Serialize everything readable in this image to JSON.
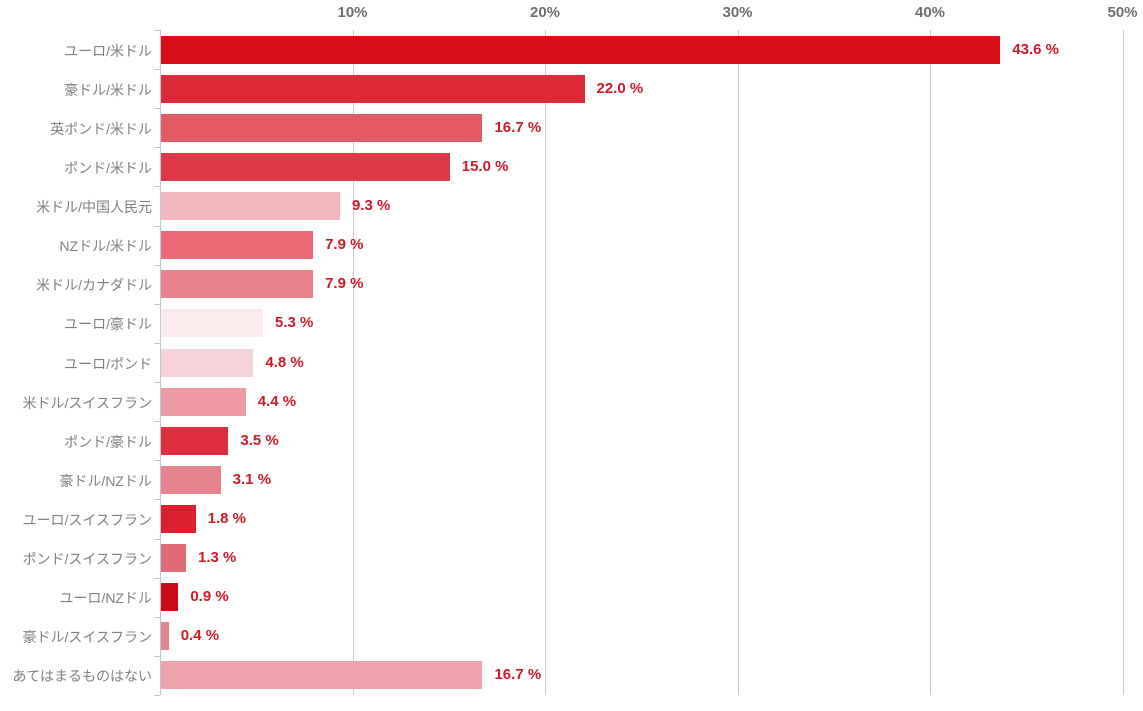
{
  "chart_data": {
    "type": "bar",
    "orientation": "horizontal",
    "title": "",
    "xlabel": "",
    "ylabel": "",
    "xlim": [
      0,
      50
    ],
    "grid": true,
    "legend": "none",
    "x_ticks": [
      {
        "value": 10,
        "label": "10%"
      },
      {
        "value": 20,
        "label": "20%"
      },
      {
        "value": 30,
        "label": "30%"
      },
      {
        "value": 40,
        "label": "40%"
      },
      {
        "value": 50,
        "label": "50%"
      }
    ],
    "categories": [
      "ユーロ/米ドル",
      "豪ドル/米ドル",
      "英ポンド/米ドル",
      "ポンド/米ドル",
      "米ドル/中国人民元",
      "NZドル/米ドル",
      "米ドル/カナダドル",
      "ユーロ/豪ドル",
      "ユーロ/ポンド",
      "米ドル/スイスフラン",
      "ポンド/豪ドル",
      "豪ドル/NZドル",
      "ユーロ/スイスフラン",
      "ポンド/スイスフラン",
      "ユーロ/NZドル",
      "豪ドル/スイスフラン",
      "あてはまるものはない"
    ],
    "values": [
      43.6,
      22.0,
      16.7,
      15.0,
      9.3,
      7.9,
      7.9,
      5.3,
      4.8,
      4.4,
      3.5,
      3.1,
      1.8,
      1.3,
      0.9,
      0.4,
      16.7
    ],
    "value_labels": [
      "43.6 %",
      "22.0 %",
      "16.7 %",
      "15.0 %",
      "9.3 %",
      "7.9 %",
      "7.9 %",
      "5.3 %",
      "4.8 %",
      "4.4 %",
      "3.5 %",
      "3.1 %",
      "1.8 %",
      "1.3 %",
      "0.9 %",
      "0.4 %",
      "16.7 %"
    ],
    "bar_colors": [
      "#d80d18",
      "#dc2b37",
      "#e25a63",
      "#dd3845",
      "#f2b6bc",
      "#ec6a75",
      "#e9838b",
      "#fbe9eb",
      "#f6d3d8",
      "#ec99a1",
      "#dc2e3c",
      "#e4838c",
      "#da1f2e",
      "#e06a74",
      "#cc0716",
      "#e4848c",
      "#efa3aa"
    ],
    "colors": {
      "value_label_text": "#ce1a28",
      "category_label_text": "#808080",
      "axis_tick_label_text": "#6e6e6e",
      "gridline": "#cccccc",
      "axis_line": "#b9c9d8",
      "background": "#ffffff"
    }
  }
}
